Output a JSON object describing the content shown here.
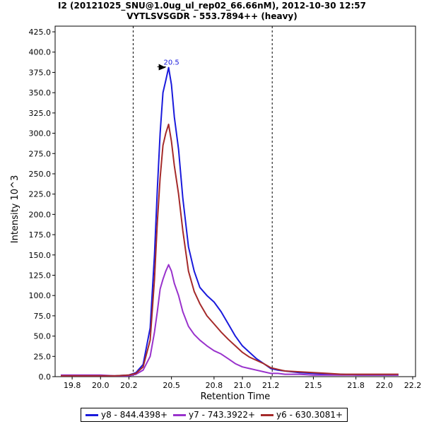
{
  "title_line1": "I2 (20121025_SNU@1.0ug_ul_rep02_66.66nM), 2012-10-30 12:57",
  "title_line2": "VYTLSVSGDR - 553.7894++ (heavy)",
  "chart_data": {
    "type": "line",
    "xlabel": "Retention Time",
    "ylabel": "Intensity 10^3",
    "xlim": [
      19.68,
      22.22
    ],
    "ylim": [
      0,
      432
    ],
    "x_ticks": [
      "19.8",
      "20.0",
      "20.2",
      "20.5",
      "20.8",
      "21.0",
      "21.2",
      "21.5",
      "21.8",
      "22.0",
      "22.2"
    ],
    "x_tick_values": [
      19.8,
      20.0,
      20.2,
      20.5,
      20.8,
      21.0,
      21.2,
      21.5,
      21.8,
      22.0,
      22.2
    ],
    "y_ticks": [
      "0.0",
      "25.0",
      "50.0",
      "75.0",
      "100.0",
      "125.0",
      "150.0",
      "175.0",
      "200.0",
      "225.0",
      "250.0",
      "275.0",
      "300.0",
      "325.0",
      "350.0",
      "375.0",
      "400.0",
      "425.0"
    ],
    "y_tick_values": [
      0,
      25,
      50,
      75,
      100,
      125,
      150,
      175,
      200,
      225,
      250,
      275,
      300,
      325,
      350,
      375,
      400,
      425
    ],
    "integration_bounds": [
      20.23,
      21.21
    ],
    "peak_annotation": {
      "label": "20.5",
      "x": 20.48,
      "y": 381
    },
    "series": [
      {
        "name": "y8 - 844.4398+",
        "color": "#1a1adc",
        "x": [
          19.72,
          19.8,
          19.9,
          20.0,
          20.1,
          20.2,
          20.25,
          20.3,
          20.35,
          20.38,
          20.4,
          20.42,
          20.44,
          20.46,
          20.48,
          20.5,
          20.52,
          20.55,
          20.58,
          20.62,
          20.66,
          20.7,
          20.75,
          20.8,
          20.85,
          20.9,
          20.95,
          21.0,
          21.05,
          21.1,
          21.15,
          21.2,
          21.25,
          21.3,
          21.4,
          21.5,
          21.6,
          21.7,
          21.8,
          21.9,
          22.0,
          22.1
        ],
        "y": [
          1,
          1,
          1,
          1,
          1,
          2,
          5,
          15,
          60,
          150,
          230,
          300,
          350,
          365,
          381,
          360,
          320,
          280,
          220,
          160,
          130,
          110,
          100,
          92,
          80,
          65,
          50,
          38,
          30,
          22,
          16,
          10,
          8,
          7,
          5,
          4,
          3,
          3,
          2,
          2,
          2,
          2
        ]
      },
      {
        "name": "y7 - 743.3922+",
        "color": "#9932cc",
        "x": [
          19.72,
          19.8,
          19.9,
          20.0,
          20.1,
          20.2,
          20.25,
          20.3,
          20.35,
          20.38,
          20.4,
          20.42,
          20.44,
          20.46,
          20.48,
          20.5,
          20.52,
          20.55,
          20.58,
          20.62,
          20.66,
          20.7,
          20.75,
          20.8,
          20.85,
          20.9,
          20.95,
          21.0,
          21.05,
          21.1,
          21.15,
          21.2,
          21.25,
          21.3,
          21.4,
          21.5,
          21.6,
          21.7,
          21.8,
          21.9,
          22.0,
          22.1
        ],
        "y": [
          2,
          2,
          2,
          2,
          1,
          1,
          3,
          8,
          25,
          55,
          80,
          108,
          120,
          130,
          138,
          130,
          115,
          100,
          80,
          62,
          52,
          45,
          38,
          32,
          28,
          22,
          16,
          12,
          10,
          8,
          6,
          4,
          4,
          3,
          3,
          2,
          2,
          2,
          2,
          2,
          2,
          2
        ]
      },
      {
        "name": "y6 - 630.3081+",
        "color": "#a52a2a",
        "x": [
          19.72,
          19.8,
          19.9,
          20.0,
          20.1,
          20.2,
          20.25,
          20.3,
          20.35,
          20.38,
          20.4,
          20.42,
          20.44,
          20.46,
          20.48,
          20.5,
          20.52,
          20.55,
          20.58,
          20.62,
          20.66,
          20.7,
          20.75,
          20.8,
          20.85,
          20.9,
          20.95,
          21.0,
          21.05,
          21.1,
          21.15,
          21.2,
          21.25,
          21.3,
          21.4,
          21.5,
          21.6,
          21.7,
          21.8,
          21.9,
          22.0,
          22.1
        ],
        "y": [
          1,
          1,
          1,
          1,
          1,
          2,
          4,
          12,
          45,
          120,
          190,
          245,
          285,
          300,
          311,
          290,
          260,
          225,
          180,
          130,
          105,
          90,
          75,
          65,
          55,
          46,
          38,
          30,
          24,
          20,
          16,
          11,
          9,
          7,
          6,
          5,
          4,
          3,
          3,
          3,
          3,
          3
        ]
      }
    ],
    "legend_position": "bottom"
  }
}
